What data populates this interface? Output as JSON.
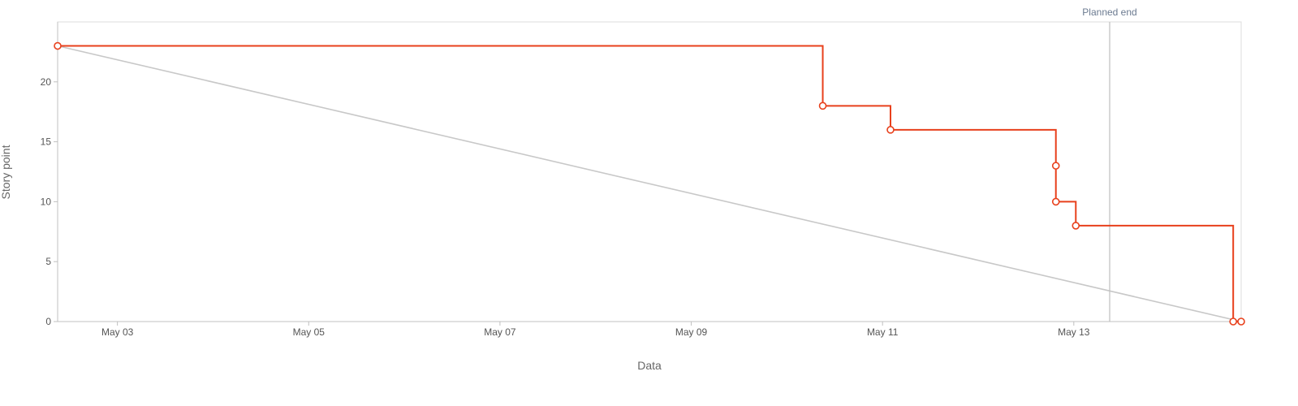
{
  "chart_data": {
    "type": "line",
    "title": "",
    "xlabel": "Data",
    "ylabel": "Story point",
    "xlim": [
      "2022-05-02T09:00",
      "2022-05-14T18:00"
    ],
    "ylim": [
      0,
      25
    ],
    "x_ticks": [
      {
        "date": "2022-05-03",
        "label": "May 03"
      },
      {
        "date": "2022-05-05",
        "label": "May 05"
      },
      {
        "date": "2022-05-07",
        "label": "May 07"
      },
      {
        "date": "2022-05-09",
        "label": "May 09"
      },
      {
        "date": "2022-05-11",
        "label": "May 11"
      },
      {
        "date": "2022-05-13",
        "label": "May 13"
      }
    ],
    "y_ticks": [
      0,
      5,
      10,
      15,
      20
    ],
    "grid": false,
    "series": [
      {
        "style": "step",
        "color": "#e8401c",
        "markers": true,
        "points": [
          {
            "x": "2022-05-02T09:00",
            "y": 23
          },
          {
            "x": "2022-05-10T09:00",
            "y": 18
          },
          {
            "x": "2022-05-11T02:00",
            "y": 16
          },
          {
            "x": "2022-05-12T19:30",
            "y": 13
          },
          {
            "x": "2022-05-12T19:30",
            "y": 10
          },
          {
            "x": "2022-05-13T00:30",
            "y": 8
          },
          {
            "x": "2022-05-14T16:00",
            "y": 0
          },
          {
            "x": "2022-05-14T18:00",
            "y": 0
          }
        ]
      },
      {
        "style": "line",
        "color": "#c8c8c8",
        "markers": false,
        "points": [
          {
            "x": "2022-05-02T09:00",
            "y": 23
          },
          {
            "x": "2022-05-14T18:00",
            "y": 0
          }
        ]
      }
    ],
    "annotations": [
      {
        "type": "vline",
        "x": "2022-05-13T09:00",
        "label": "Planned end",
        "color": "#bfbfbf"
      }
    ]
  }
}
